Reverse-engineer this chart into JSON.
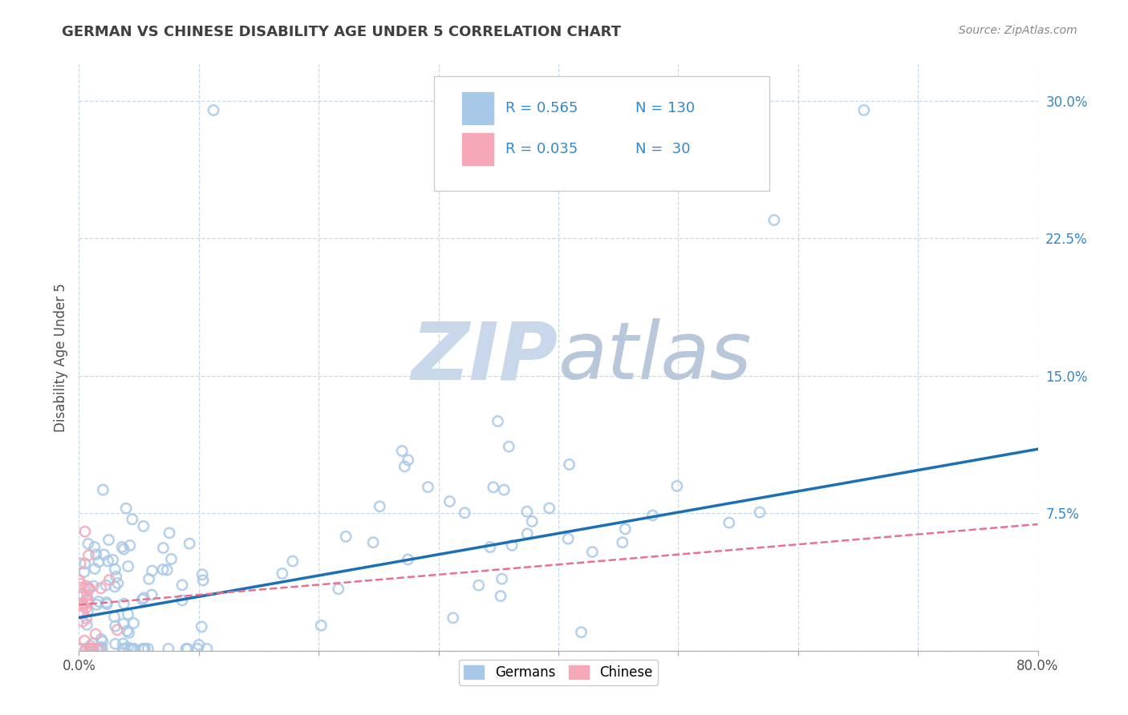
{
  "title": "GERMAN VS CHINESE DISABILITY AGE UNDER 5 CORRELATION CHART",
  "source": "Source: ZipAtlas.com",
  "ylabel": "Disability Age Under 5",
  "xlim": [
    0.0,
    0.8
  ],
  "ylim": [
    0.0,
    0.32
  ],
  "xticks": [
    0.0,
    0.1,
    0.2,
    0.3,
    0.4,
    0.5,
    0.6,
    0.7,
    0.8
  ],
  "yticks": [
    0.0,
    0.075,
    0.15,
    0.225,
    0.3
  ],
  "yticklabels": [
    "",
    "7.5%",
    "15.0%",
    "22.5%",
    "30.0%"
  ],
  "german_R": 0.565,
  "german_N": 130,
  "chinese_R": 0.035,
  "chinese_N": 30,
  "german_color": "#a8c8e8",
  "chinese_color": "#f4a8b8",
  "german_edge_color": "#7aaace",
  "chinese_edge_color": "#e87898",
  "german_line_color": "#1a6fb5",
  "chinese_line_color": "#e87090",
  "watermark_zip_color": "#c8d8ea",
  "watermark_atlas_color": "#b8c8da",
  "background_color": "#ffffff",
  "grid_color": "#c8d8e8",
  "title_color": "#404040",
  "legend_color": "#3388cc",
  "source_color": "#888888",
  "german_line_slope": 0.115,
  "german_line_intercept": 0.018,
  "chinese_line_slope": 0.055,
  "chinese_line_intercept": 0.025
}
